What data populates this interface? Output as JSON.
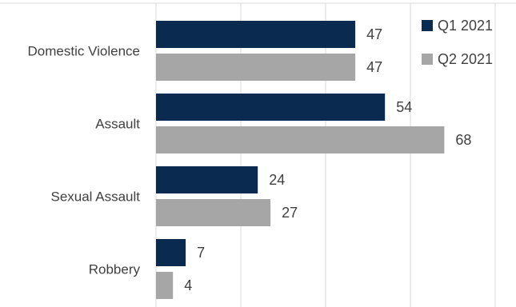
{
  "chart_data": {
    "type": "bar",
    "orientation": "horizontal",
    "categories": [
      "Domestic Violence",
      "Assault",
      "Sexual Assault",
      "Robbery"
    ],
    "series": [
      {
        "name": "Q1 2021",
        "color": "#0b2a4f",
        "values": [
          47,
          54,
          24,
          7
        ]
      },
      {
        "name": "Q2 2021",
        "color": "#a6a6a6",
        "values": [
          47,
          68,
          27,
          4
        ]
      }
    ],
    "xlim": [
      0,
      80
    ],
    "grid": true,
    "legend": "top-right",
    "title": "",
    "xlabel": "",
    "ylabel": ""
  }
}
